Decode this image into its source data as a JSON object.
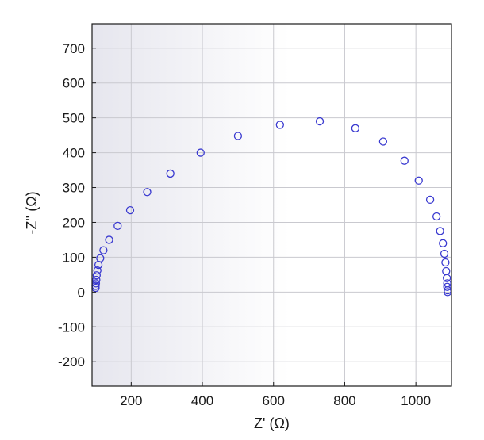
{
  "chart_data": {
    "type": "scatter",
    "xlabel": "Z' (Ω)",
    "ylabel": "-Z'' (Ω)",
    "xlim": [
      90,
      1100
    ],
    "ylim": [
      -270,
      770
    ],
    "xticks": [
      200,
      400,
      600,
      800,
      1000
    ],
    "yticks": [
      700,
      600,
      500,
      400,
      300,
      200,
      100,
      0,
      -100,
      -200
    ],
    "grid": true,
    "legend": "none",
    "colors": {
      "marker": "#3a3ad0",
      "grid": "#c9c9cf",
      "frame": "#1a1a1a",
      "plot_bg_edge": "#e6e6ee",
      "plot_bg_center": "#ffffff"
    },
    "series": [
      {
        "marker": "open-circle",
        "x": [
          100,
          100,
          101,
          102,
          103,
          105,
          108,
          113,
          122,
          138,
          162,
          197,
          245,
          310,
          395,
          500,
          618,
          730,
          830,
          908,
          968,
          1008,
          1040,
          1058,
          1068,
          1076,
          1080,
          1083,
          1085,
          1087,
          1088,
          1088,
          1089,
          1089
        ],
        "y": [
          12,
          18,
          25,
          35,
          48,
          62,
          78,
          97,
          120,
          150,
          190,
          235,
          287,
          340,
          400,
          448,
          480,
          490,
          470,
          432,
          377,
          320,
          265,
          217,
          175,
          140,
          110,
          85,
          60,
          40,
          25,
          15,
          5,
          0
        ]
      }
    ]
  }
}
